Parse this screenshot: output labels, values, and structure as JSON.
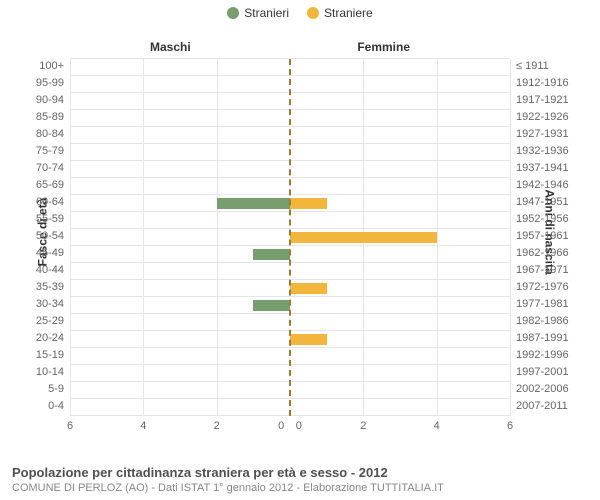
{
  "legend": {
    "male": {
      "label": "Stranieri",
      "color": "#789d6e"
    },
    "female": {
      "label": "Straniere",
      "color": "#f2b63c"
    }
  },
  "chart": {
    "type": "bar",
    "male_section_label": "Maschi",
    "female_section_label": "Femmine",
    "y_left_title": "Fasce di età",
    "y_right_title": "Anni di nascita",
    "x_max": 6,
    "x_ticks": [
      6,
      4,
      2,
      0,
      0,
      2,
      4,
      6
    ],
    "grid_positions": [
      0,
      16.67,
      33.33,
      50,
      66.67,
      83.33,
      100
    ],
    "background_color": "#ffffff",
    "grid_color": "#e6e6e6",
    "center_line_color": "#9a7b2f",
    "rows": [
      {
        "age": "100+",
        "birth": "≤ 1911",
        "m": 0,
        "f": 0
      },
      {
        "age": "95-99",
        "birth": "1912-1916",
        "m": 0,
        "f": 0
      },
      {
        "age": "90-94",
        "birth": "1917-1921",
        "m": 0,
        "f": 0
      },
      {
        "age": "85-89",
        "birth": "1922-1926",
        "m": 0,
        "f": 0
      },
      {
        "age": "80-84",
        "birth": "1927-1931",
        "m": 0,
        "f": 0
      },
      {
        "age": "75-79",
        "birth": "1932-1936",
        "m": 0,
        "f": 0
      },
      {
        "age": "70-74",
        "birth": "1937-1941",
        "m": 0,
        "f": 0
      },
      {
        "age": "65-69",
        "birth": "1942-1946",
        "m": 0,
        "f": 0
      },
      {
        "age": "60-64",
        "birth": "1947-1951",
        "m": 2,
        "f": 1
      },
      {
        "age": "55-59",
        "birth": "1952-1956",
        "m": 0,
        "f": 0
      },
      {
        "age": "50-54",
        "birth": "1957-1961",
        "m": 0,
        "f": 4
      },
      {
        "age": "45-49",
        "birth": "1962-1966",
        "m": 1,
        "f": 0
      },
      {
        "age": "40-44",
        "birth": "1967-1971",
        "m": 0,
        "f": 0
      },
      {
        "age": "35-39",
        "birth": "1972-1976",
        "m": 0,
        "f": 1
      },
      {
        "age": "30-34",
        "birth": "1977-1981",
        "m": 1,
        "f": 0
      },
      {
        "age": "25-29",
        "birth": "1982-1986",
        "m": 0,
        "f": 0
      },
      {
        "age": "20-24",
        "birth": "1987-1991",
        "m": 0,
        "f": 1
      },
      {
        "age": "15-19",
        "birth": "1992-1996",
        "m": 0,
        "f": 0
      },
      {
        "age": "10-14",
        "birth": "1997-2001",
        "m": 0,
        "f": 0
      },
      {
        "age": "5-9",
        "birth": "2002-2006",
        "m": 0,
        "f": 0
      },
      {
        "age": "0-4",
        "birth": "2007-2011",
        "m": 0,
        "f": 0
      }
    ]
  },
  "footer": {
    "title": "Popolazione per cittadinanza straniera per età e sesso - 2012",
    "subtitle": "COMUNE DI PERLOZ (AO) - Dati ISTAT 1° gennaio 2012 - Elaborazione TUTTITALIA.IT"
  }
}
